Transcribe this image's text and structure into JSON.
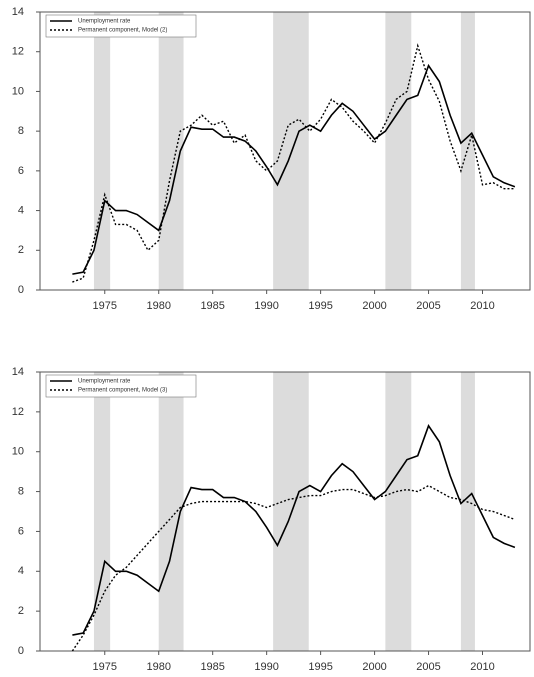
{
  "chart_data": [
    {
      "type": "line",
      "x": [
        1972,
        1973,
        1974,
        1975,
        1976,
        1977,
        1978,
        1979,
        1980,
        1981,
        1982,
        1983,
        1984,
        1985,
        1986,
        1987,
        1988,
        1989,
        1990,
        1991,
        1992,
        1993,
        1994,
        1995,
        1996,
        1997,
        1998,
        1999,
        2000,
        2001,
        2002,
        2003,
        2004,
        2005,
        2006,
        2007,
        2008,
        2009,
        2010,
        2011,
        2012,
        2013
      ],
      "series": [
        {
          "name": "Unemployment rate",
          "color": "#000000",
          "style": "solid",
          "values": [
            0.8,
            0.9,
            2.0,
            4.5,
            4.0,
            4.0,
            3.8,
            3.4,
            3.0,
            4.5,
            7.0,
            8.2,
            8.1,
            8.1,
            7.7,
            7.7,
            7.5,
            7.0,
            6.2,
            5.3,
            6.5,
            8.0,
            8.3,
            8.0,
            8.8,
            9.4,
            9.0,
            8.3,
            7.6,
            8.0,
            8.8,
            9.6,
            9.8,
            11.3,
            10.5,
            8.8,
            7.4,
            7.9,
            6.8,
            5.7,
            5.4,
            5.2
          ]
        },
        {
          "name": "Permanent component, Model (2)",
          "color": "#000000",
          "style": "dotted",
          "values": [
            0.4,
            0.6,
            2.5,
            4.8,
            3.3,
            3.3,
            3.0,
            2.0,
            2.5,
            5.5,
            8.0,
            8.3,
            8.8,
            8.3,
            8.5,
            7.4,
            7.8,
            6.5,
            6.0,
            6.5,
            8.3,
            8.6,
            8.0,
            8.6,
            9.6,
            9.2,
            8.5,
            8.0,
            7.4,
            8.4,
            9.6,
            10.0,
            12.3,
            10.6,
            9.5,
            7.5,
            6.0,
            7.8,
            5.3,
            5.4,
            5.1,
            5.1
          ]
        }
      ],
      "shaded": [
        [
          1974,
          1975.5
        ],
        [
          1980,
          1982.3
        ],
        [
          1990.6,
          1993.9
        ],
        [
          2001,
          2003.4
        ],
        [
          2008,
          2009.3
        ]
      ],
      "xlim": [
        1969,
        2014.4
      ],
      "ylim": [
        0,
        14
      ],
      "xticks": [
        1975,
        1980,
        1985,
        1990,
        1995,
        2000,
        2005,
        2010
      ],
      "yticks": [
        0,
        2,
        4,
        6,
        8,
        10,
        12,
        14
      ]
    },
    {
      "type": "line",
      "x": [
        1972,
        1973,
        1974,
        1975,
        1976,
        1977,
        1978,
        1979,
        1980,
        1981,
        1982,
        1983,
        1984,
        1985,
        1986,
        1987,
        1988,
        1989,
        1990,
        1991,
        1992,
        1993,
        1994,
        1995,
        1996,
        1997,
        1998,
        1999,
        2000,
        2001,
        2002,
        2003,
        2004,
        2005,
        2006,
        2007,
        2008,
        2009,
        2010,
        2011,
        2012,
        2013
      ],
      "series": [
        {
          "name": "Unemployment rate",
          "color": "#000000",
          "style": "solid",
          "values": [
            0.8,
            0.9,
            2.0,
            4.5,
            4.0,
            4.0,
            3.8,
            3.4,
            3.0,
            4.5,
            7.0,
            8.2,
            8.1,
            8.1,
            7.7,
            7.7,
            7.5,
            7.0,
            6.2,
            5.3,
            6.5,
            8.0,
            8.3,
            8.0,
            8.8,
            9.4,
            9.0,
            8.3,
            7.6,
            8.0,
            8.8,
            9.6,
            9.8,
            11.3,
            10.5,
            8.8,
            7.4,
            7.9,
            6.8,
            5.7,
            5.4,
            5.2
          ]
        },
        {
          "name": "Permanent component, Model (3)",
          "color": "#000000",
          "style": "dotted",
          "values": [
            0,
            0.8,
            1.8,
            3.0,
            3.8,
            4.2,
            4.8,
            5.4,
            6.0,
            6.6,
            7.2,
            7.4,
            7.5,
            7.5,
            7.5,
            7.5,
            7.5,
            7.4,
            7.2,
            7.4,
            7.6,
            7.7,
            7.8,
            7.8,
            8.0,
            8.1,
            8.1,
            7.9,
            7.7,
            7.8,
            8.0,
            8.1,
            8.0,
            8.3,
            8.0,
            7.7,
            7.6,
            7.4,
            7.1,
            7.0,
            6.8,
            6.6
          ]
        }
      ],
      "shaded": [
        [
          1974,
          1975.5
        ],
        [
          1980,
          1982.3
        ],
        [
          1990.6,
          1993.9
        ],
        [
          2001,
          2003.4
        ],
        [
          2008,
          2009.3
        ]
      ],
      "xlim": [
        1969,
        2014.4
      ],
      "ylim": [
        0,
        14
      ],
      "xticks": [
        1975,
        1980,
        1985,
        1990,
        1995,
        2000,
        2005,
        2010
      ],
      "yticks": [
        0,
        2,
        4,
        6,
        8,
        10,
        12,
        14
      ]
    }
  ]
}
